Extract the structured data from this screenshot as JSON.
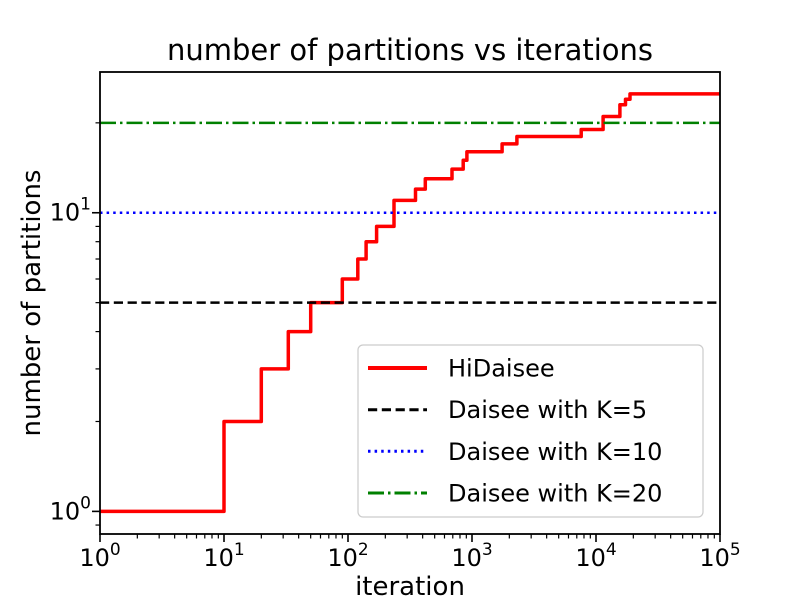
{
  "title": "number of partitions vs iterations",
  "colors": {
    "hidaisee": "#ff0000",
    "daisee_k5": "#000000",
    "daisee_k10": "#0000ff",
    "daisee_k20": "#008000",
    "legend_border": "#cccccc",
    "axis": "#000000",
    "background": "#ffffff"
  },
  "chart_data": {
    "type": "line",
    "title": "number of partitions vs iterations",
    "xlabel": "iteration",
    "ylabel": "number of partitions",
    "xscale": "log",
    "yscale": "log",
    "xlim": [
      1,
      100000
    ],
    "ylim": [
      0.84,
      29.6
    ],
    "x_tick_base": "10",
    "x_tick_exponents": [
      "0",
      "1",
      "2",
      "3",
      "4",
      "5"
    ],
    "y_tick_base": "10",
    "y_tick_exponents": [
      "0",
      "1"
    ],
    "y_minor_tick_values": [
      0.9,
      2,
      3,
      4,
      5,
      6,
      7,
      8,
      9,
      20
    ],
    "grid": false,
    "legend_position": "lower right",
    "series": [
      {
        "name": "HiDaisee",
        "color": "#ff0000",
        "linestyle": "solid",
        "linewidth": 3.5,
        "type": "step",
        "points": [
          [
            1,
            1
          ],
          [
            10,
            2
          ],
          [
            20,
            3
          ],
          [
            33,
            4
          ],
          [
            50,
            5
          ],
          [
            90,
            6
          ],
          [
            120,
            7
          ],
          [
            140,
            8
          ],
          [
            170,
            9
          ],
          [
            235,
            11
          ],
          [
            350,
            12
          ],
          [
            420,
            13
          ],
          [
            690,
            14
          ],
          [
            850,
            15
          ],
          [
            910,
            16
          ],
          [
            1750,
            17
          ],
          [
            2300,
            18
          ],
          [
            7600,
            19
          ],
          [
            11400,
            21
          ],
          [
            15600,
            23
          ],
          [
            17300,
            24
          ],
          [
            18800,
            25
          ],
          [
            100000,
            25
          ]
        ]
      },
      {
        "name": "Daisee with K=5",
        "color": "#000000",
        "linestyle": "dashed",
        "linewidth": 2.5,
        "type": "hline",
        "y": 5
      },
      {
        "name": "Daisee with K=10",
        "color": "#0000ff",
        "linestyle": "dotted",
        "linewidth": 2.5,
        "type": "hline",
        "y": 10
      },
      {
        "name": "Daisee with K=20",
        "color": "#008000",
        "linestyle": "dashdot",
        "linewidth": 2.5,
        "type": "hline",
        "y": 20
      }
    ]
  }
}
